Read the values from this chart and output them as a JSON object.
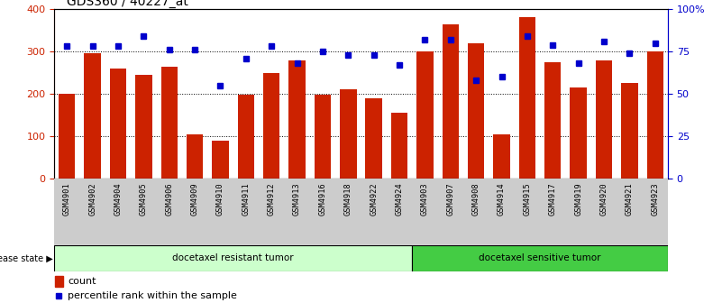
{
  "title": "GDS360 / 40227_at",
  "samples": [
    "GSM4901",
    "GSM4902",
    "GSM4904",
    "GSM4905",
    "GSM4906",
    "GSM4909",
    "GSM4910",
    "GSM4911",
    "GSM4912",
    "GSM4913",
    "GSM4916",
    "GSM4918",
    "GSM4922",
    "GSM4924",
    "GSM4903",
    "GSM4907",
    "GSM4908",
    "GSM4914",
    "GSM4915",
    "GSM4917",
    "GSM4919",
    "GSM4920",
    "GSM4921",
    "GSM4923"
  ],
  "counts": [
    200,
    295,
    260,
    245,
    265,
    105,
    90,
    198,
    250,
    280,
    198,
    210,
    190,
    155,
    300,
    365,
    320,
    105,
    380,
    275,
    215,
    280,
    225,
    300
  ],
  "percentile_ranks": [
    78,
    78,
    78,
    84,
    76,
    76,
    55,
    71,
    78,
    68,
    75,
    73,
    73,
    67,
    82,
    82,
    58,
    60,
    84,
    79,
    68,
    81,
    74,
    80
  ],
  "group1_label": "docetaxel resistant tumor",
  "group2_label": "docetaxel sensitive tumor",
  "group1_count": 14,
  "group2_count": 10,
  "bar_color": "#CC2200",
  "dot_color": "#0000CC",
  "left_axis_color": "#CC2200",
  "right_axis_color": "#0000CC",
  "ylim_left": [
    0,
    400
  ],
  "ylim_right": [
    0,
    100
  ],
  "left_ticks": [
    0,
    100,
    200,
    300,
    400
  ],
  "right_ticks": [
    0,
    25,
    50,
    75,
    100
  ],
  "right_tick_labels": [
    "0",
    "25",
    "50",
    "75",
    "100%"
  ],
  "group1_color": "#ccffcc",
  "group2_color": "#44cc44",
  "legend_count_label": "count",
  "legend_pct_label": "percentile rank within the sample",
  "xtick_bg_color": "#cccccc"
}
